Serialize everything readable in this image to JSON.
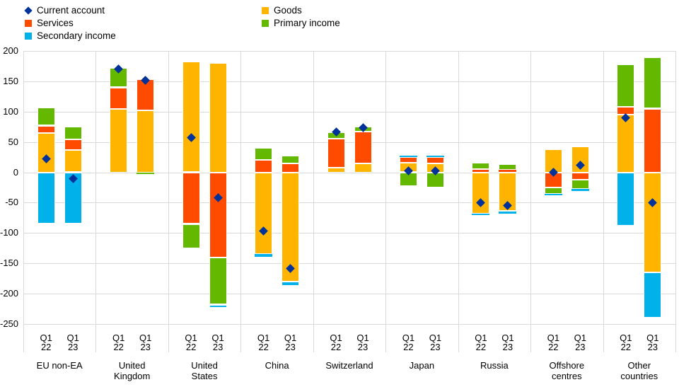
{
  "chart_data": {
    "type": "bar",
    "subtype": "stacked-bars-with-point-markers",
    "title": "",
    "legend": [
      {
        "label": "Current account",
        "marker": "diamond",
        "color": "#003299",
        "col": 0,
        "row": 0
      },
      {
        "label": "Goods",
        "marker": "square",
        "color": "#FFB400",
        "col": 1,
        "row": 0
      },
      {
        "label": "Services",
        "marker": "square",
        "color": "#FF4B00",
        "col": 0,
        "row": 1
      },
      {
        "label": "Primary income",
        "marker": "square",
        "color": "#65B800",
        "col": 1,
        "row": 1
      },
      {
        "label": "Secondary income",
        "marker": "square",
        "color": "#00B1EA",
        "col": 0,
        "row": 2
      }
    ],
    "y_axis": {
      "min": -250,
      "max": 200,
      "step": 50,
      "tick_labels": [
        "200",
        "150",
        "100",
        "50",
        "0",
        "-50",
        "-100",
        "-150",
        "-200",
        "-250"
      ]
    },
    "grid": "horizontal-and-category-separators",
    "series": [
      {
        "key": "goods",
        "name": "Goods",
        "color": "#FFB400"
      },
      {
        "key": "services",
        "name": "Services",
        "color": "#FF4B00"
      },
      {
        "key": "primary_income",
        "name": "Primary income",
        "color": "#65B800"
      },
      {
        "key": "secondary_income",
        "name": "Secondary income",
        "color": "#00B1EA"
      }
    ],
    "marker_series": {
      "key": "current_account",
      "name": "Current account",
      "color": "#003299"
    },
    "groups": [
      {
        "name": "EU non-EA",
        "name_lines": [
          "EU non-EA"
        ],
        "bars": [
          {
            "period_lines": [
              "Q1",
              "22"
            ],
            "goods": 65,
            "services": 12,
            "primary_income": 30,
            "secondary_income": -85,
            "current_account": 22
          },
          {
            "period_lines": [
              "Q1",
              "23"
            ],
            "goods": 37,
            "services": 17,
            "primary_income": 21,
            "secondary_income": -85,
            "current_account": -10
          }
        ]
      },
      {
        "name": "United Kingdom",
        "name_lines": [
          "United",
          "Kingdom"
        ],
        "bars": [
          {
            "period_lines": [
              "Q1",
              "22"
            ],
            "goods": 105,
            "services": 35,
            "primary_income": 32,
            "secondary_income": 0,
            "current_account": 170
          },
          {
            "period_lines": [
              "Q1",
              "23"
            ],
            "goods": 102,
            "services": 51,
            "primary_income": -3,
            "secondary_income": 0,
            "current_account": 152
          }
        ]
      },
      {
        "name": "United States",
        "name_lines": [
          "United",
          "States"
        ],
        "bars": [
          {
            "period_lines": [
              "Q1",
              "22"
            ],
            "goods": 182,
            "services": -85,
            "primary_income": -40,
            "secondary_income": 0,
            "current_account": 57
          },
          {
            "period_lines": [
              "Q1",
              "23"
            ],
            "goods": 180,
            "services": -140,
            "primary_income": -78,
            "secondary_income": -5,
            "current_account": -42
          }
        ]
      },
      {
        "name": "China",
        "name_lines": [
          "China"
        ],
        "bars": [
          {
            "period_lines": [
              "Q1",
              "22"
            ],
            "goods": -135,
            "services": 20,
            "primary_income": 20,
            "secondary_income": -4,
            "current_account": -97
          },
          {
            "period_lines": [
              "Q1",
              "23"
            ],
            "goods": -180,
            "services": 15,
            "primary_income": 12,
            "secondary_income": -7,
            "current_account": -158
          }
        ]
      },
      {
        "name": "Switzerland",
        "name_lines": [
          "Switzerland"
        ],
        "bars": [
          {
            "period_lines": [
              "Q1",
              "22"
            ],
            "goods": 8,
            "services": 47,
            "primary_income": 11,
            "secondary_income": 0,
            "current_account": 66
          },
          {
            "period_lines": [
              "Q1",
              "23"
            ],
            "goods": 15,
            "services": 52,
            "primary_income": 8,
            "secondary_income": 0,
            "current_account": 73
          }
        ]
      },
      {
        "name": "Japan",
        "name_lines": [
          "Japan"
        ],
        "bars": [
          {
            "period_lines": [
              "Q1",
              "22"
            ],
            "goods": 16,
            "services": 9,
            "primary_income": -23,
            "secondary_income": 2,
            "current_account": 3
          },
          {
            "period_lines": [
              "Q1",
              "23"
            ],
            "goods": 15,
            "services": 10,
            "primary_income": -25,
            "secondary_income": 3,
            "current_account": 2
          }
        ]
      },
      {
        "name": "Russia",
        "name_lines": [
          "Russia"
        ],
        "bars": [
          {
            "period_lines": [
              "Q1",
              "22"
            ],
            "goods": -68,
            "services": 5,
            "primary_income": 11,
            "secondary_income": -2,
            "current_account": -50
          },
          {
            "period_lines": [
              "Q1",
              "23"
            ],
            "goods": -64,
            "services": 4,
            "primary_income": 9,
            "secondary_income": -4,
            "current_account": -55
          }
        ]
      },
      {
        "name": "Offshore centres",
        "name_lines": [
          "Offshore",
          "centres"
        ],
        "bars": [
          {
            "period_lines": [
              "Q1",
              "22"
            ],
            "goods": 38,
            "services": -25,
            "primary_income": -10,
            "secondary_income": -3,
            "current_account": 0
          },
          {
            "period_lines": [
              "Q1",
              "23"
            ],
            "goods": 43,
            "services": -12,
            "primary_income": -15,
            "secondary_income": -4,
            "current_account": 12
          }
        ]
      },
      {
        "name": "Other countries",
        "name_lines": [
          "Other",
          "countries"
        ],
        "bars": [
          {
            "period_lines": [
              "Q1",
              "22"
            ],
            "goods": 95,
            "services": 13,
            "primary_income": 70,
            "secondary_income": -88,
            "current_account": 90
          },
          {
            "period_lines": [
              "Q1",
              "23"
            ],
            "goods": -165,
            "services": 105,
            "primary_income": 85,
            "secondary_income": -75,
            "current_account": -50
          }
        ]
      }
    ]
  },
  "colors": {
    "background": "#ffffff",
    "gridline": "#d9d9d9",
    "text": "#000000"
  }
}
